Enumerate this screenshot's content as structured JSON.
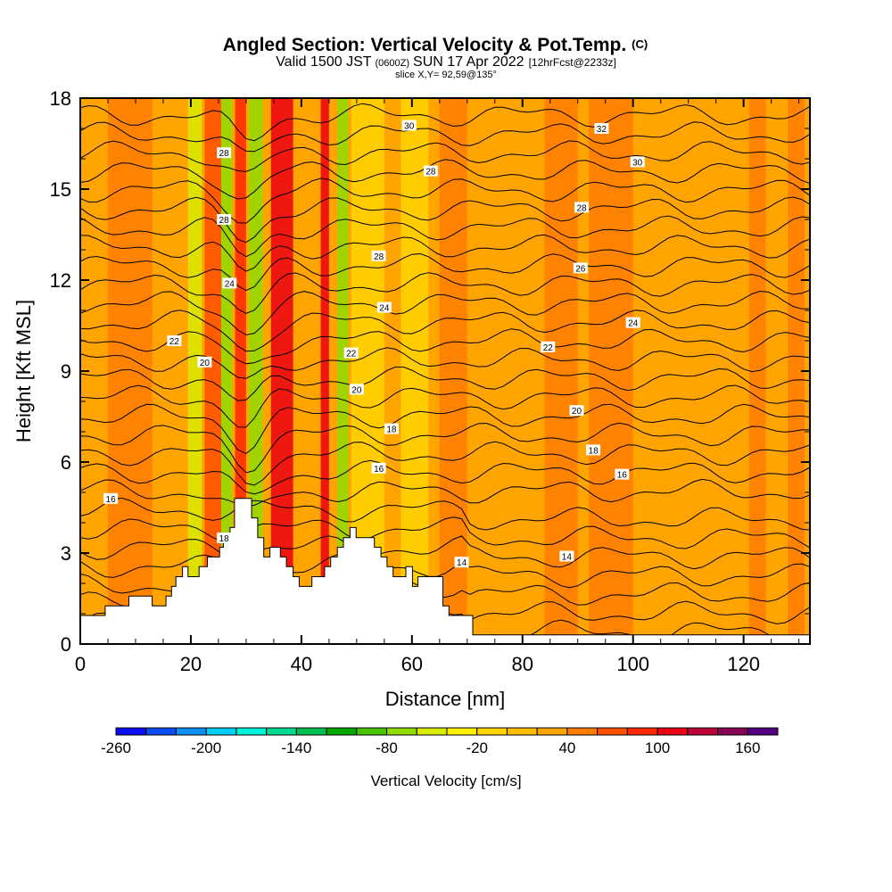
{
  "chart_data": {
    "type": "heatmap",
    "title": "Angled Section: Vertical Velocity & Pot.Temp.",
    "title_suffix": "(C)",
    "subtitle_main": "Valid 1500 JST",
    "subtitle_z": "(0600Z)",
    "subtitle_date": "SUN 17 Apr 2022",
    "subtitle_fcst": "[12hrFcst@2233z]",
    "slice_label": "slice X,Y= 92,59@135°",
    "xlabel": "Distance [nm]",
    "ylabel": "Height [Kft MSL]",
    "xlim": [
      0,
      132
    ],
    "ylim": [
      0,
      18
    ],
    "x_ticks": [
      0,
      20,
      40,
      60,
      80,
      100,
      120
    ],
    "x_tick_labels": [
      "0",
      "20",
      "40",
      "60",
      "80",
      "100",
      "120"
    ],
    "y_ticks": [
      0,
      3,
      6,
      9,
      12,
      15,
      18
    ],
    "y_tick_labels": [
      "0",
      "3",
      "6",
      "9",
      "12",
      "15",
      "18"
    ],
    "colorbar": {
      "label": "Vertical Velocity [cm/s]",
      "tick_labels": [
        "-260",
        "-200",
        "-140",
        "-80",
        "-20",
        "40",
        "100",
        "160"
      ],
      "colors": [
        "#0c0cf4",
        "#0c4cf4",
        "#0c90f4",
        "#00ccf4",
        "#00f0d8",
        "#00d890",
        "#00c050",
        "#00a800",
        "#48c400",
        "#90dc00",
        "#d8ec00",
        "#fff000",
        "#ffd400",
        "#ffbc00",
        "#ffa400",
        "#ff7c00",
        "#ff5000",
        "#ff2800",
        "#ec0014",
        "#bc0038",
        "#880054",
        "#540084"
      ]
    },
    "contour_labels": [
      {
        "text": "30",
        "x": 59.5,
        "y": 17.1
      },
      {
        "text": "32",
        "x": 94.3,
        "y": 17.0
      },
      {
        "text": "28",
        "x": 26.0,
        "y": 16.2
      },
      {
        "text": "30",
        "x": 100.8,
        "y": 15.9
      },
      {
        "text": "28",
        "x": 63.4,
        "y": 15.6
      },
      {
        "text": "28",
        "x": 90.7,
        "y": 14.4
      },
      {
        "text": "28",
        "x": 26.0,
        "y": 14.0
      },
      {
        "text": "28",
        "x": 54.0,
        "y": 12.8
      },
      {
        "text": "26",
        "x": 90.5,
        "y": 12.4
      },
      {
        "text": "24",
        "x": 27.0,
        "y": 11.9
      },
      {
        "text": "24",
        "x": 55.0,
        "y": 11.1
      },
      {
        "text": "24",
        "x": 100.0,
        "y": 10.6
      },
      {
        "text": "22",
        "x": 17.0,
        "y": 10.0
      },
      {
        "text": "22",
        "x": 84.6,
        "y": 9.8
      },
      {
        "text": "22",
        "x": 49.0,
        "y": 9.6
      },
      {
        "text": "20",
        "x": 22.5,
        "y": 9.3
      },
      {
        "text": "20",
        "x": 50.0,
        "y": 8.4
      },
      {
        "text": "20",
        "x": 89.8,
        "y": 7.7
      },
      {
        "text": "18",
        "x": 56.3,
        "y": 7.1
      },
      {
        "text": "18",
        "x": 92.8,
        "y": 6.4
      },
      {
        "text": "16",
        "x": 54.0,
        "y": 5.8
      },
      {
        "text": "16",
        "x": 98.0,
        "y": 5.6
      },
      {
        "text": "16",
        "x": 5.5,
        "y": 4.8
      },
      {
        "text": "18",
        "x": 26.0,
        "y": 3.5
      },
      {
        "text": "14",
        "x": 69.0,
        "y": 2.7
      },
      {
        "text": "14",
        "x": 88.0,
        "y": 2.9
      }
    ],
    "terrain_profile_nm": [
      0,
      4.5,
      4.5,
      8.8,
      8.8,
      13,
      13,
      15.5,
      15.5,
      16.5,
      16.5,
      17.3,
      17.3,
      18.5,
      18.5,
      19.5,
      19.5,
      21.5,
      21.5,
      23,
      23,
      25.2,
      25.2,
      25.9,
      25.9,
      27.1,
      27.1,
      27.9,
      27.9,
      31,
      31,
      32.1,
      32.1,
      33.2,
      33.2,
      34.3,
      34.3,
      36.2,
      36.2,
      37.3,
      37.3,
      38.5,
      38.5,
      39.6,
      39.6,
      41.9,
      41.9,
      44.2,
      44.2,
      45.3,
      45.3,
      46.5,
      46.5,
      47.6,
      47.6,
      48.8,
      48.8,
      49.9,
      49.9,
      53.2,
      53.2,
      54.4,
      54.4,
      55.5,
      55.5,
      56.6,
      56.6,
      58.9,
      58.9,
      60.1,
      60.1,
      61.1,
      61.1,
      65.6,
      65.6,
      66.7,
      66.7,
      71,
      71,
      132
    ],
    "terrain_profile_kft": [
      0.94,
      0.94,
      1.26,
      1.26,
      1.58,
      1.58,
      1.26,
      1.26,
      1.58,
      1.58,
      1.9,
      1.9,
      2.22,
      2.22,
      2.55,
      2.55,
      2.22,
      2.22,
      2.55,
      2.55,
      2.87,
      2.87,
      3.19,
      3.19,
      3.51,
      3.51,
      3.84,
      3.84,
      4.8,
      4.8,
      4.16,
      4.16,
      3.51,
      3.51,
      2.87,
      2.87,
      3.19,
      3.19,
      2.87,
      2.87,
      2.55,
      2.55,
      2.22,
      2.22,
      1.9,
      1.9,
      2.22,
      2.22,
      2.55,
      2.55,
      2.87,
      2.87,
      3.19,
      3.19,
      3.51,
      3.51,
      3.84,
      3.84,
      3.51,
      3.51,
      3.19,
      3.19,
      2.87,
      2.87,
      2.55,
      2.55,
      2.22,
      2.22,
      2.55,
      2.55,
      1.9,
      1.9,
      2.22,
      2.22,
      1.26,
      1.26,
      0.94,
      0.94,
      0.3,
      0.3
    ],
    "velocity_features": [
      {
        "x": 0,
        "w": 132,
        "value": 30
      },
      {
        "x": 5,
        "w": 8,
        "value": 40
      },
      {
        "x": 15,
        "w": 4,
        "value": 35
      },
      {
        "x": 19.5,
        "w": 2.5,
        "value": -60
      },
      {
        "x": 22.5,
        "w": 3,
        "value": 70
      },
      {
        "x": 25.5,
        "w": 2,
        "value": -80
      },
      {
        "x": 28,
        "w": 2,
        "value": 90
      },
      {
        "x": 30.5,
        "w": 2.5,
        "value": -70
      },
      {
        "x": 34.5,
        "w": 4,
        "value": 100
      },
      {
        "x": 39,
        "w": 3,
        "value": 20
      },
      {
        "x": 43.5,
        "w": 1.5,
        "value": 100
      },
      {
        "x": 46.5,
        "w": 2,
        "value": -70
      },
      {
        "x": 49,
        "w": 6,
        "value": -20
      },
      {
        "x": 58,
        "w": 5,
        "value": -20
      },
      {
        "x": 65,
        "w": 5,
        "value": 40
      },
      {
        "x": 73,
        "w": 6,
        "value": 20
      },
      {
        "x": 84,
        "w": 6,
        "value": 40
      },
      {
        "x": 92,
        "w": 8,
        "value": 40
      },
      {
        "x": 101,
        "w": 4,
        "value": 20
      },
      {
        "x": 110,
        "w": 4,
        "value": 20
      },
      {
        "x": 121,
        "w": 3,
        "value": 40
      },
      {
        "x": 128,
        "w": 3,
        "value": 40
      }
    ]
  }
}
